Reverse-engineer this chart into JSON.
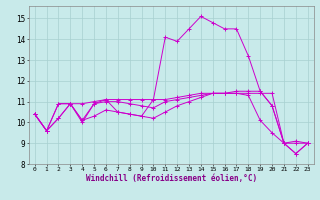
{
  "title": "",
  "xlabel": "Windchill (Refroidissement éolien,°C)",
  "ylabel": "",
  "background_color": "#c8eaea",
  "grid_color": "#a8d0d0",
  "line_color": "#cc00cc",
  "xlim": [
    -0.5,
    23.5
  ],
  "ylim": [
    8,
    15.6
  ],
  "yticks": [
    8,
    9,
    10,
    11,
    12,
    13,
    14,
    15
  ],
  "xticks": [
    0,
    1,
    2,
    3,
    4,
    5,
    6,
    7,
    8,
    9,
    10,
    11,
    12,
    13,
    14,
    15,
    16,
    17,
    18,
    19,
    20,
    21,
    22,
    23
  ],
  "series": [
    [
      10.4,
      9.6,
      10.2,
      10.9,
      10.1,
      10.9,
      11.1,
      10.5,
      10.4,
      10.3,
      11.1,
      14.1,
      13.9,
      14.5,
      15.1,
      14.8,
      14.5,
      14.5,
      13.2,
      11.5,
      10.8,
      9.0,
      9.1,
      9.0
    ],
    [
      10.4,
      9.6,
      10.9,
      10.9,
      10.9,
      11.0,
      11.1,
      11.1,
      11.1,
      11.1,
      11.1,
      11.1,
      11.2,
      11.3,
      11.4,
      11.4,
      11.4,
      11.4,
      11.4,
      11.4,
      11.4,
      9.0,
      9.0,
      9.0
    ],
    [
      10.4,
      9.6,
      10.9,
      10.9,
      10.0,
      10.9,
      11.0,
      11.0,
      10.9,
      10.8,
      10.7,
      11.0,
      11.1,
      11.2,
      11.3,
      11.4,
      11.4,
      11.5,
      11.5,
      11.5,
      10.8,
      9.0,
      8.5,
      9.0
    ],
    [
      10.4,
      9.6,
      10.2,
      10.9,
      10.1,
      10.3,
      10.6,
      10.5,
      10.4,
      10.3,
      10.2,
      10.5,
      10.8,
      11.0,
      11.2,
      11.4,
      11.4,
      11.4,
      11.3,
      10.1,
      9.5,
      9.0,
      8.5,
      9.0
    ]
  ]
}
